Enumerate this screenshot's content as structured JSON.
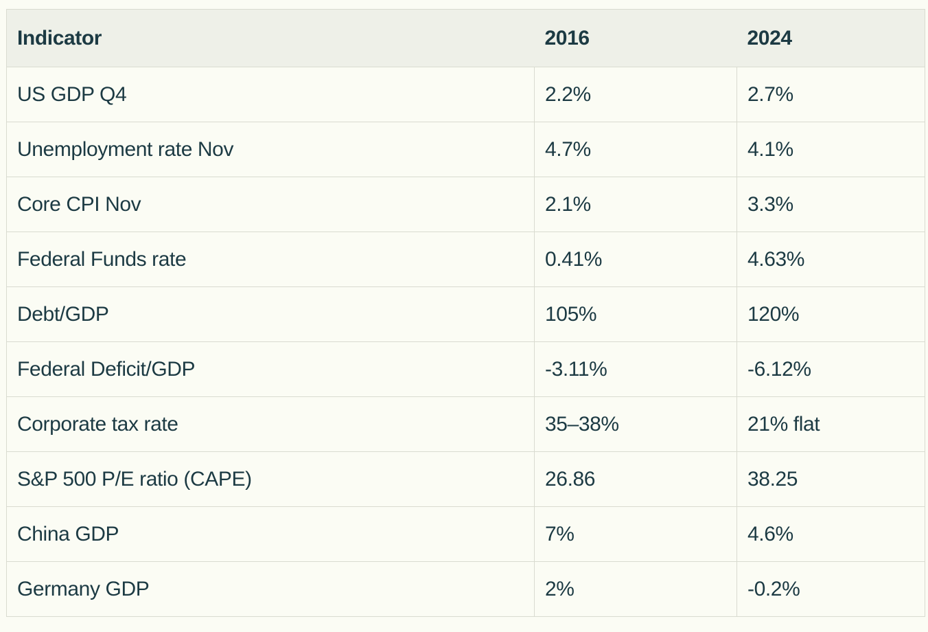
{
  "chart_data": {
    "type": "table",
    "title": "",
    "columns": [
      "Indicator",
      "2016",
      "2024"
    ],
    "rows": [
      [
        "US GDP Q4",
        "2.2%",
        "2.7%"
      ],
      [
        "Unemployment rate Nov",
        "4.7%",
        "4.1%"
      ],
      [
        "Core CPI Nov",
        "2.1%",
        "3.3%"
      ],
      [
        "Federal Funds rate",
        "0.41%",
        "4.63%"
      ],
      [
        "Debt/GDP",
        "105%",
        "120%"
      ],
      [
        "Federal Deficit/GDP",
        "-3.11%",
        "-6.12%"
      ],
      [
        "Corporate tax rate",
        "35–38%",
        "21% flat"
      ],
      [
        "S&P 500 P/E ratio (CAPE)",
        "26.86",
        "38.25"
      ],
      [
        "China GDP",
        "7%",
        "4.6%"
      ],
      [
        "Germany GDP",
        "2%",
        "-0.2%"
      ]
    ]
  },
  "colors": {
    "page_background": "#fbfcf4",
    "header_background": "#eef0e8",
    "row_background": "#fbfcf4",
    "border": "#d9dbd0",
    "text": "#1c3a43"
  }
}
